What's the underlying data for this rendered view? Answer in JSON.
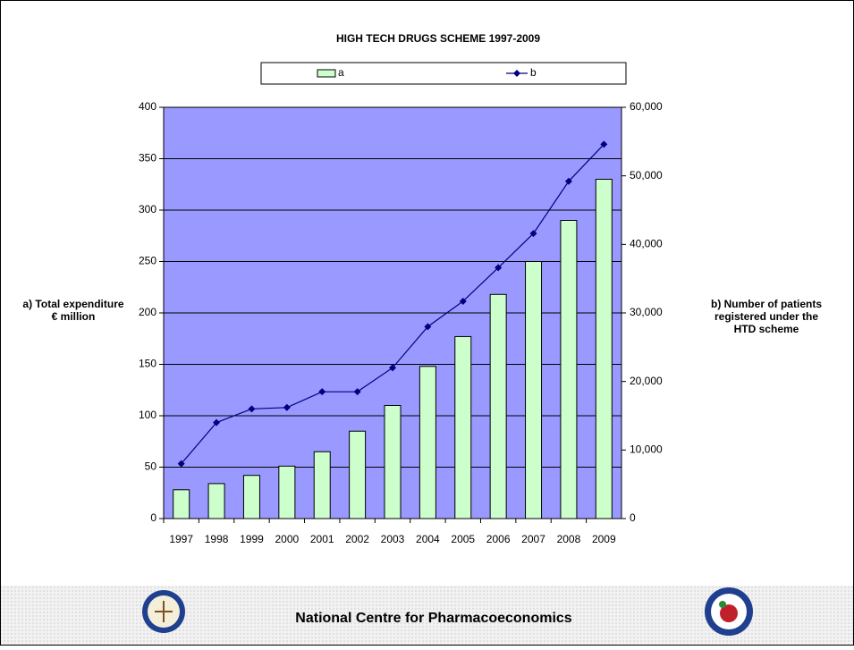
{
  "chart_data": {
    "type": "bar_line",
    "title": "HIGH TECH DRUGS SCHEME 1997-2009",
    "y_label": [
      "a) Total expenditure",
      "€ million"
    ],
    "y2_label": [
      "b) Number of patients",
      "registered under the",
      "HTD scheme"
    ],
    "categories": [
      "1997",
      "1998",
      "1999",
      "2000",
      "2001",
      "2002",
      "2003",
      "2004",
      "2005",
      "2006",
      "2007",
      "2008",
      "2009"
    ],
    "series": [
      {
        "name": "a",
        "type": "bar",
        "color": "#ccffcc",
        "values": [
          28,
          34,
          42,
          51,
          65,
          85,
          110,
          148,
          177,
          218,
          250,
          290,
          330
        ]
      },
      {
        "name": "b",
        "type": "line",
        "axis": "y2",
        "color": "#000080",
        "values": [
          8000,
          14000,
          16000,
          16200,
          18500,
          18500,
          22000,
          28000,
          31700,
          36600,
          41600,
          49200,
          54600
        ]
      }
    ],
    "ylim": [
      0,
      400
    ],
    "yticks": [
      0,
      50,
      100,
      150,
      200,
      250,
      300,
      350,
      400
    ],
    "y2lim": [
      0,
      60000
    ],
    "y2ticks": [
      0,
      {
        "value": 10000,
        "label": "10,000"
      },
      {
        "value": 20000,
        "label": "20,000"
      },
      {
        "value": 30000,
        "label": "30,000"
      },
      {
        "value": 40000,
        "label": "40,000"
      },
      {
        "value": 50000,
        "label": "50,000"
      },
      {
        "value": 60000,
        "label": "60,000"
      }
    ],
    "grid": true,
    "plot_background": "#9999ff"
  },
  "footer": {
    "text": "National Centre for Pharmacoeconomics"
  }
}
